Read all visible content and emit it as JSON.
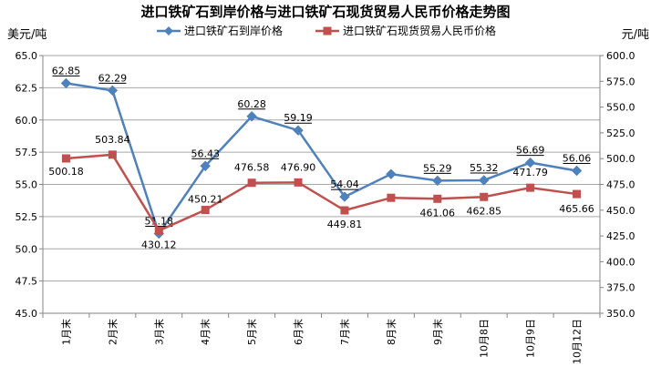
{
  "chart_data": {
    "type": "line",
    "title": "进口铁矿石到岸价格与进口铁矿石现货贸易人民币价格走势图",
    "ylabel_left": "美元/吨",
    "ylabel_right": "元/吨",
    "categories": [
      "1月末",
      "2月末",
      "3月末",
      "4月末",
      "5月末",
      "6月末",
      "7月末",
      "8月末",
      "9月末",
      "10月8日",
      "10月9日",
      "10月12日"
    ],
    "left_axis": {
      "min": 45.0,
      "max": 65.0,
      "step": 2.5,
      "ticks": [
        "45.0",
        "47.5",
        "50.0",
        "52.5",
        "55.0",
        "57.5",
        "60.0",
        "62.5",
        "65.0"
      ]
    },
    "right_axis": {
      "min": 350.0,
      "max": 600.0,
      "step": 25,
      "ticks": [
        "350.0",
        "375.0",
        "400.0",
        "425.0",
        "450.0",
        "475.0",
        "500.0",
        "525.0",
        "550.0",
        "575.0",
        "600.0"
      ]
    },
    "series": [
      {
        "name": "进口铁矿石到岸价格",
        "axis": "left",
        "color": "#4f81bd",
        "marker": "diamond",
        "values": [
          62.85,
          62.29,
          51.18,
          56.43,
          60.28,
          59.19,
          54.04,
          55.8,
          55.29,
          55.32,
          56.69,
          56.06
        ],
        "labels": [
          "62.85",
          "62.29",
          "51.18",
          "56.43",
          "60.28",
          "59.19",
          "54.04",
          "",
          "55.29",
          "55.32",
          "56.69",
          "56.06"
        ]
      },
      {
        "name": "进口铁矿石现货贸易人民币价格",
        "axis": "right",
        "color": "#c0504d",
        "marker": "square",
        "values": [
          500.18,
          503.84,
          430.12,
          450.21,
          476.58,
          476.9,
          449.81,
          462.0,
          461.06,
          462.85,
          471.79,
          465.66
        ],
        "labels": [
          "500.18",
          "503.84",
          "430.12",
          "450.21",
          "476.58",
          "476.90",
          "449.81",
          "",
          "461.06",
          "462.85",
          "471.79",
          "465.66"
        ]
      }
    ],
    "grid": {
      "horizontal": true,
      "vertical": false
    },
    "legend_position": "top"
  }
}
